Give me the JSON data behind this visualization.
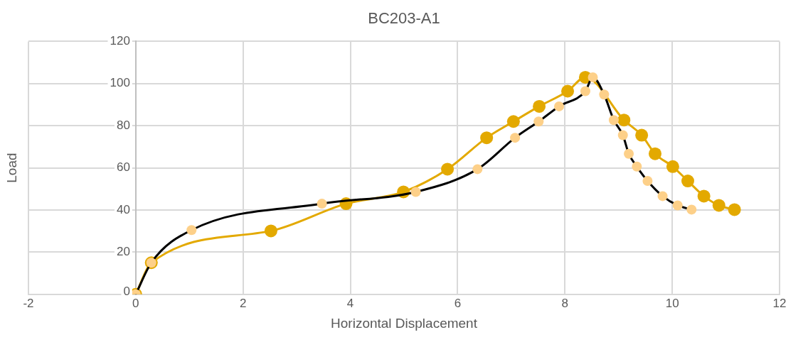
{
  "chart_data": {
    "type": "line",
    "title": "BC203-A1",
    "xlabel": "Horizontal Displacement",
    "ylabel": "Load",
    "xlim": [
      -2,
      12
    ],
    "xticks": [
      -2,
      0,
      2,
      4,
      6,
      8,
      10,
      12
    ],
    "ylim": [
      0,
      120
    ],
    "yticks": [
      0,
      20,
      40,
      60,
      80,
      100,
      120
    ],
    "grid": true,
    "legend": false,
    "marker": "circle",
    "line_style": "solid",
    "series": [
      {
        "color": "#000000",
        "colors": [
          "#fdd089",
          "#fdd089",
          "#fdd089",
          "#fdd089",
          "#fdd089",
          "#fdd089",
          "#fdd089",
          "#fdd089",
          "#fdd089",
          "#fdd089",
          "#fdd089",
          "#fdd089",
          "#fdd089",
          "#fdd089",
          "#fdd089",
          "#fdd089",
          "#fdd089",
          "#fdd089",
          "#fdd089",
          "#fdd089"
        ],
        "x": [
          0,
          0.29,
          1.04,
          3.47,
          5.22,
          6.37,
          7.07,
          7.51,
          7.89,
          8.38,
          8.52,
          8.73,
          8.91,
          9.08,
          9.19,
          9.34,
          9.54,
          9.82,
          10.1,
          10.36
        ],
        "values": [
          0,
          15,
          30.5,
          43,
          48.6,
          59.4,
          74.3,
          82,
          89.2,
          96.4,
          103,
          94.8,
          82.7,
          75.5,
          66.7,
          60.6,
          53.8,
          46.6,
          42.2,
          40.2
        ]
      },
      {
        "color": "#e3a900",
        "x": [
          0,
          0.29,
          2.52,
          3.92,
          4.99,
          5.81,
          6.54,
          7.04,
          7.52,
          8.05,
          8.38,
          9.1,
          9.43,
          9.68,
          10.01,
          10.29,
          10.59,
          10.87,
          11.16
        ],
        "values": [
          0,
          15,
          30.1,
          43,
          48.6,
          59.4,
          74.3,
          82,
          89.2,
          96.4,
          103,
          82.7,
          75.5,
          66.7,
          60.6,
          53.8,
          46.6,
          42.2,
          40.2
        ]
      }
    ]
  }
}
